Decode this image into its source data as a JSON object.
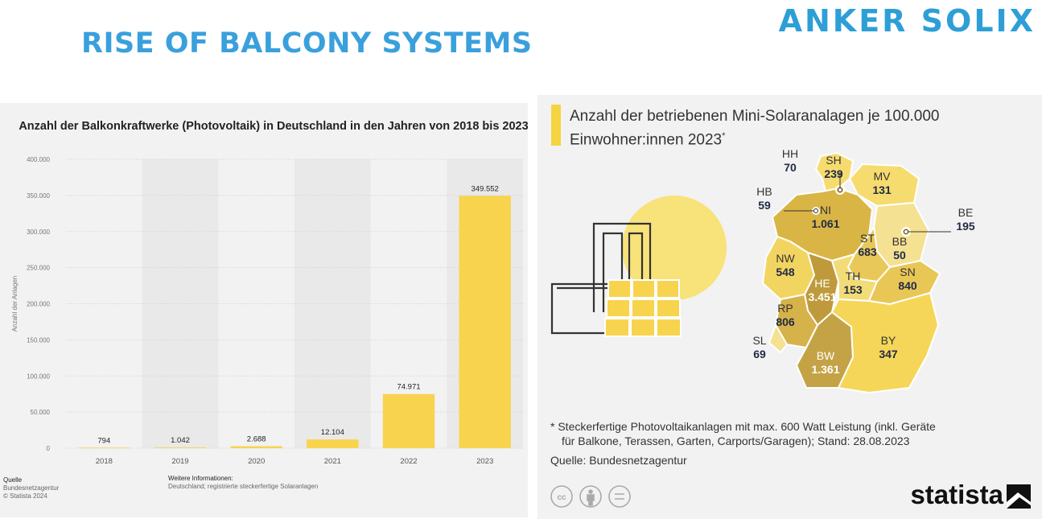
{
  "header": {
    "brand": "ANKER SOLIX",
    "title": "RISE OF BALCONY SYSTEMS"
  },
  "colors": {
    "brand_blue": "#2e9fd6",
    "bar_yellow": "#f8d34e",
    "panel_bg": "#f2f2f2"
  },
  "chart_data": [
    {
      "type": "bar",
      "title": "Anzahl der Balkonkraftwerke (Photovoltaik) in Deutschland in den Jahren von 2018 bis 2023",
      "categories": [
        "2018",
        "2019",
        "2020",
        "2021",
        "2022",
        "2023"
      ],
      "values": [
        794,
        1042,
        2688,
        12104,
        74971,
        349552
      ],
      "value_labels": [
        "794",
        "1.042",
        "2.688",
        "12.104",
        "74.971",
        "349.552"
      ],
      "ylabel": "Anzahl der Anlagen",
      "ylim": [
        0,
        400000
      ],
      "yticks": [
        0,
        50000,
        100000,
        150000,
        200000,
        250000,
        300000,
        350000,
        400000
      ],
      "ytick_labels": [
        "0",
        "50.000",
        "100.000",
        "150.000",
        "200.000",
        "250.000",
        "300.000",
        "350.000",
        "400.000"
      ],
      "grid": true,
      "color": "#f8d34e"
    },
    {
      "type": "map",
      "title": "Anzahl der betriebenen Mini-Solaranalagen je 100.000 Einwohner:innen 2023",
      "title_marker": "*",
      "regions": [
        {
          "code": "SH",
          "value_label": "239"
        },
        {
          "code": "HH",
          "value_label": "70"
        },
        {
          "code": "MV",
          "value_label": "131"
        },
        {
          "code": "HB",
          "value_label": "59"
        },
        {
          "code": "NI",
          "value_label": "1.061"
        },
        {
          "code": "BE",
          "value_label": "195"
        },
        {
          "code": "BB",
          "value_label": "50"
        },
        {
          "code": "ST",
          "value_label": "683"
        },
        {
          "code": "NW",
          "value_label": "548"
        },
        {
          "code": "SN",
          "value_label": "840"
        },
        {
          "code": "HE",
          "value_label": "3.451"
        },
        {
          "code": "TH",
          "value_label": "153"
        },
        {
          "code": "RP",
          "value_label": "806"
        },
        {
          "code": "SL",
          "value_label": "69"
        },
        {
          "code": "BY",
          "value_label": "347"
        },
        {
          "code": "BW",
          "value_label": "1.361"
        }
      ]
    }
  ],
  "left_footer": {
    "source_head": "Quelle",
    "source_1": "Bundesnetzagentur",
    "source_2": "© Statista 2024",
    "info_head": "Weitere Informationen:",
    "info_text": "Deutschland; registrierte steckerfertige Solaranlagen"
  },
  "right_footer": {
    "footnote_1": "* Steckerfertige Photovoltaikanlagen mit max. 600 Watt Leistung (inkl. Geräte",
    "footnote_2": "für Balkone, Terassen, Garten, Carports/Garagen); Stand: 28.08.2023",
    "source": "Quelle: Bundesnetzagentur",
    "logo": "statista"
  }
}
